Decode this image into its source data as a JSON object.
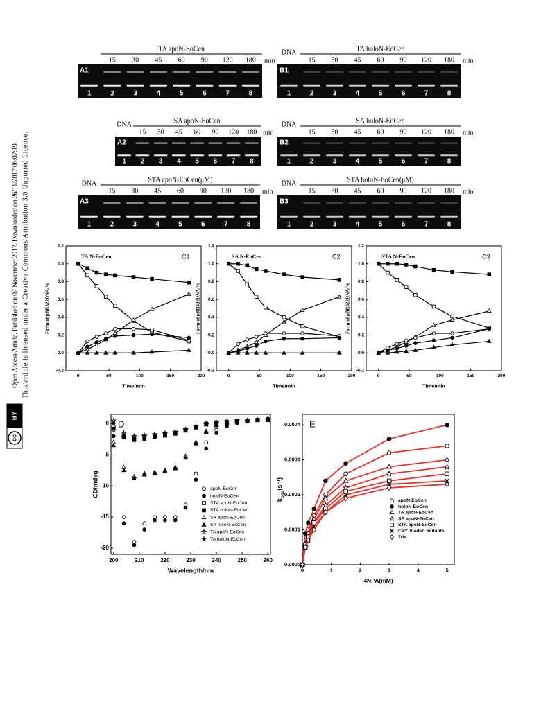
{
  "sidebar": {
    "line1": "Open Access Article. Published on 07 November 2017. Downloaded on 26/11/2017 06:07:19.",
    "line2": "This article is licensed under a Creative Commons Attribution 3.0 Unported Licence.",
    "badge_cc": "cc",
    "badge_by": "BY"
  },
  "gels": [
    {
      "label": "A1",
      "title": "TA apoN-EoCen",
      "times": [
        15,
        30,
        45,
        60,
        90,
        120,
        180
      ],
      "unit": "min",
      "lanes": [
        "1",
        "2",
        "3",
        "4",
        "5",
        "6",
        "7",
        "8"
      ]
    },
    {
      "label": "B1",
      "dna": "DNA",
      "title": "TA holoN-EoCen",
      "times": [
        15,
        30,
        45,
        60,
        90,
        120,
        180
      ],
      "unit": "min",
      "lanes": [
        "1",
        "2",
        "3",
        "4",
        "5",
        "6",
        "7",
        "8"
      ]
    },
    {
      "label": "A2",
      "dna": "DNA",
      "title": "SA apoN-EoCen",
      "times": [
        15,
        30,
        45,
        60,
        90,
        120,
        180
      ],
      "unit": "min",
      "lanes": [
        "1",
        "2",
        "3",
        "4",
        "5",
        "6",
        "7",
        "8"
      ]
    },
    {
      "label": "B2",
      "dna": "DNA",
      "title": "SA holoN-EoCen",
      "times": [
        15,
        30,
        45,
        60,
        90,
        120,
        180
      ],
      "unit": "min",
      "lanes": [
        "1",
        "2",
        "3",
        "4",
        "5",
        "6",
        "7",
        "8"
      ]
    },
    {
      "label": "A3",
      "dna": "DNA",
      "title": "STA apoN-EoCen(μM)",
      "times": [
        15,
        30,
        45,
        60,
        90,
        120,
        180
      ],
      "unit": "min",
      "lanes": [
        "1",
        "2",
        "3",
        "4",
        "5",
        "6",
        "7",
        "8"
      ]
    },
    {
      "label": "B3",
      "dna": "DNA",
      "title": "STA holoN-EoCen(μM)",
      "times": [
        15,
        30,
        45,
        60,
        90,
        120,
        180
      ],
      "unit": "min",
      "lanes": [
        "1",
        "2",
        "3",
        "4",
        "5",
        "6",
        "7",
        "8"
      ]
    }
  ],
  "chart_data": [
    {
      "type": "line",
      "title": "TA N-EoCen",
      "panel": "C1",
      "xlabel": "Time/min",
      "ylabel": "Form of pBR322DNA/%",
      "line_color": "#000000",
      "x": [
        0,
        15,
        30,
        45,
        60,
        90,
        120,
        180
      ],
      "xlim": [
        -20,
        200
      ],
      "xticks": [
        0,
        50,
        100,
        150,
        200
      ],
      "ylim": [
        -0.2,
        1.2
      ],
      "yticks": [
        -0.2,
        {
          "value": 0,
          "label": "0.0"
        },
        0.2,
        0.4,
        0.6,
        0.8,
        {
          "value": 1,
          "label": "1.0"
        },
        1.2
      ],
      "series": [
        {
          "color": "#000000",
          "marker": "square",
          "filled": false,
          "values": [
            1.0,
            0.87,
            0.75,
            0.63,
            0.53,
            0.36,
            0.23,
            0.13
          ]
        },
        {
          "color": "#000000",
          "marker": "square",
          "filled": true,
          "values": [
            1.0,
            0.95,
            0.9,
            0.88,
            0.87,
            0.85,
            0.83,
            0.79
          ]
        },
        {
          "color": "#000000",
          "marker": "triangle",
          "filled": false,
          "values": [
            0,
            0.04,
            0.09,
            0.15,
            0.22,
            0.37,
            0.49,
            0.66
          ]
        },
        {
          "color": "#000000",
          "marker": "circle",
          "filled": false,
          "values": [
            0,
            0.13,
            0.18,
            0.22,
            0.27,
            0.27,
            0.26,
            0.14
          ]
        },
        {
          "color": "#000000",
          "marker": "circle",
          "filled": true,
          "values": [
            0,
            0.07,
            0.12,
            0.16,
            0.19,
            0.2,
            0.21,
            0.17
          ]
        },
        {
          "color": "#000000",
          "marker": "triangle",
          "filled": true,
          "values": [
            0,
            0,
            0,
            0,
            0,
            0,
            0.01,
            0.03
          ]
        }
      ]
    },
    {
      "type": "line",
      "title": "SA N-EoCen",
      "panel": "C2",
      "xlabel": "Time/min",
      "ylabel": "Form of pBR322DNA/%",
      "line_color": "#000000",
      "x": [
        0,
        15,
        30,
        45,
        60,
        90,
        120,
        180
      ],
      "xlim": [
        -20,
        200
      ],
      "xticks": [
        0,
        50,
        100,
        150,
        200
      ],
      "ylim": [
        -0.2,
        1.2
      ],
      "yticks": [
        -0.2,
        {
          "value": 0,
          "label": "0.0"
        },
        0.2,
        0.4,
        0.6,
        0.8,
        {
          "value": 1,
          "label": "1.0"
        },
        1.2
      ],
      "series": [
        {
          "color": "#000000",
          "marker": "square",
          "filled": false,
          "values": [
            1.0,
            0.92,
            0.77,
            0.63,
            0.51,
            0.4,
            0.3,
            0.18
          ]
        },
        {
          "color": "#000000",
          "marker": "square",
          "filled": true,
          "values": [
            1.0,
            1.0,
            0.98,
            0.94,
            0.92,
            0.88,
            0.85,
            0.82
          ]
        },
        {
          "color": "#000000",
          "marker": "triangle",
          "filled": false,
          "values": [
            0,
            0.03,
            0.07,
            0.12,
            0.2,
            0.35,
            0.48,
            0.63
          ]
        },
        {
          "color": "#000000",
          "marker": "circle",
          "filled": false,
          "values": [
            0,
            0.1,
            0.15,
            0.18,
            0.22,
            0.22,
            0.22,
            0.19
          ]
        },
        {
          "color": "#000000",
          "marker": "circle",
          "filled": true,
          "values": [
            0,
            0.02,
            0.05,
            0.08,
            0.13,
            0.16,
            0.16,
            0.17
          ]
        },
        {
          "color": "#000000",
          "marker": "triangle",
          "filled": true,
          "values": [
            0,
            0,
            0,
            0,
            0,
            0,
            0,
            0
          ]
        }
      ]
    },
    {
      "type": "line",
      "title": "STA N-EoCen",
      "panel": "C3",
      "xlabel": "Time/min",
      "ylabel": "Form of pBR322DNA/%",
      "line_color": "#000000",
      "x": [
        0,
        15,
        30,
        45,
        60,
        90,
        120,
        180
      ],
      "xlim": [
        -20,
        200
      ],
      "xticks": [
        0,
        50,
        100,
        150,
        200
      ],
      "ylim": [
        -0.2,
        1.2
      ],
      "yticks": [
        -0.2,
        {
          "value": 0,
          "label": "0.0"
        },
        0.2,
        0.4,
        0.6,
        0.8,
        {
          "value": 1,
          "label": "1.0"
        },
        1.2
      ],
      "series": [
        {
          "color": "#000000",
          "marker": "square",
          "filled": false,
          "values": [
            1.0,
            0.9,
            0.82,
            0.74,
            0.65,
            0.52,
            0.41,
            0.28
          ]
        },
        {
          "color": "#000000",
          "marker": "square",
          "filled": true,
          "values": [
            1.0,
            1.0,
            1.0,
            0.99,
            0.97,
            0.93,
            0.91,
            0.88
          ]
        },
        {
          "color": "#000000",
          "marker": "triangle",
          "filled": false,
          "values": [
            0,
            0.03,
            0.07,
            0.12,
            0.18,
            0.31,
            0.37,
            0.47
          ]
        },
        {
          "color": "#000000",
          "marker": "circle",
          "filled": false,
          "values": [
            0,
            0.06,
            0.1,
            0.14,
            0.17,
            0.22,
            0.22,
            0.27
          ]
        },
        {
          "color": "#000000",
          "marker": "circle",
          "filled": true,
          "values": [
            0,
            0.03,
            0.05,
            0.08,
            0.11,
            0.14,
            0.17,
            0.27
          ]
        },
        {
          "color": "#000000",
          "marker": "triangle",
          "filled": true,
          "values": [
            0,
            0,
            0.01,
            0.02,
            0.03,
            0.06,
            0.09,
            0.13
          ]
        }
      ]
    },
    {
      "type": "scatter",
      "panel": "D",
      "xlabel": "Wavelength/nm",
      "ylabel": "CD/mdeg",
      "legend": "lower right",
      "x": [
        200,
        204,
        208,
        212,
        216,
        220,
        224,
        228,
        232,
        236,
        240,
        244,
        248,
        252,
        256,
        260
      ],
      "xlim": [
        199,
        261
      ],
      "xticks": [
        200,
        210,
        220,
        230,
        240,
        250,
        260
      ],
      "ylim": [
        -21,
        1.5
      ],
      "yticks": [
        -20,
        -15,
        -10,
        -5,
        0
      ],
      "series": [
        {
          "name": "apoN-EoCen",
          "color": "#000000",
          "marker": "circle",
          "filled": false,
          "values": [
            -1,
            -15,
            -19,
            -16,
            -15,
            -15,
            -15,
            -13,
            -8,
            -3,
            -1,
            -0.2,
            0.2,
            0.4,
            0.6,
            0.8
          ]
        },
        {
          "name": "holoN-EoCen",
          "color": "#000000",
          "marker": "circle",
          "filled": true,
          "values": [
            -2,
            -16,
            -19.5,
            -17,
            -15.5,
            -15.5,
            -15.5,
            -13.5,
            -9,
            -4,
            -1.5,
            -0.4,
            0.1,
            0.4,
            0.6,
            0.7
          ]
        },
        {
          "name": "STA apoN-EoCen",
          "color": "#000000",
          "marker": "square",
          "filled": false,
          "values": [
            -0.5,
            -2,
            -2.5,
            -2.3,
            -2,
            -1.8,
            -1.5,
            -1,
            -0.5,
            0,
            0.2,
            0.3,
            0.4,
            0.5,
            0.6,
            0.7
          ]
        },
        {
          "name": "STA holoN-EoCen",
          "color": "#000000",
          "marker": "square",
          "filled": true,
          "values": [
            -0.8,
            -2.2,
            -2.6,
            -2.4,
            -2.1,
            -1.9,
            -1.6,
            -1.1,
            -0.6,
            -0.1,
            0.1,
            0.3,
            0.4,
            0.5,
            0.6,
            0.6
          ]
        },
        {
          "name": "SA apoN-EoCen",
          "color": "#000000",
          "marker": "triangle",
          "filled": false,
          "values": [
            -3,
            -7,
            -8.5,
            -8,
            -7.8,
            -7.5,
            -7,
            -5.2,
            -3,
            -1.2,
            -0.2,
            0.2,
            0.4,
            0.5,
            0.6,
            0.7
          ]
        },
        {
          "name": "SA holoN-EoCen",
          "color": "#000000",
          "marker": "triangle",
          "filled": true,
          "values": [
            -3.5,
            -7.5,
            -8.8,
            -8.2,
            -8,
            -7.7,
            -7.2,
            -5.5,
            -3.2,
            -1.4,
            -0.3,
            0.1,
            0.3,
            0.5,
            0.6,
            0.7
          ]
        },
        {
          "name": "TA apoN-EoCen",
          "color": "#000000",
          "marker": "star",
          "filled": false,
          "values": [
            0.5,
            -1.5,
            -2,
            -1.9,
            -1.7,
            -1.5,
            -1.3,
            -0.9,
            -0.4,
            0,
            0.2,
            0.3,
            0.4,
            0.5,
            0.6,
            0.7
          ]
        },
        {
          "name": "TA holoN-EoCen",
          "color": "#000000",
          "marker": "star",
          "filled": true,
          "values": [
            0,
            -1.8,
            -2.2,
            -2,
            -1.8,
            -1.6,
            -1.4,
            -1,
            -0.5,
            -0.1,
            0.1,
            0.3,
            0.4,
            0.5,
            0.6,
            0.6
          ]
        }
      ]
    },
    {
      "type": "scatter",
      "panel": "E",
      "xlabel": "4NPA(mM)",
      "ylabel": {
        "k": "k",
        "sub": "obs",
        "unit": "(s⁻¹)"
      },
      "legend": "lower right",
      "line_color": "#e8312a",
      "x": [
        0,
        0.1,
        0.2,
        0.4,
        0.8,
        1.5,
        3,
        5
      ],
      "xlim": [
        0,
        5.25
      ],
      "xticks": [
        0,
        1,
        2,
        3,
        4,
        5
      ],
      "ylim": [
        0,
        0.00043
      ],
      "yticks": [
        {
          "value": 0,
          "label": "0.0000"
        },
        {
          "value": 0.0001,
          "label": "0.0001"
        },
        {
          "value": 0.0002,
          "label": "0.0002"
        },
        {
          "value": 0.0003,
          "label": "0.0003"
        },
        {
          "value": 0.0004,
          "label": "0.0004"
        }
      ],
      "series": [
        {
          "name": "apoN-EoCen",
          "color": "#000000",
          "marker": "circle",
          "filled": false,
          "values": [
            0,
            6e-05,
            0.0001,
            0.00014,
            0.0002,
            0.00026,
            0.00032,
            0.00034
          ]
        },
        {
          "name": "holoN-EoCen",
          "color": "#000000",
          "marker": "circle",
          "filled": true,
          "values": [
            0,
            9e-05,
            0.00012,
            0.00016,
            0.00024,
            0.00029,
            0.00036,
            0.0004
          ]
        },
        {
          "name": "TA apoN-EoCen",
          "color": "#000000",
          "marker": "triangle",
          "filled": false,
          "values": [
            0,
            6e-05,
            9e-05,
            0.00013,
            0.00019,
            0.00024,
            0.00028,
            0.0003
          ]
        },
        {
          "name": "SA apoN-EoCen",
          "color": "#000000",
          "marker": "star",
          "filled": false,
          "values": [
            0,
            5e-05,
            8e-05,
            0.00012,
            0.00017,
            0.00022,
            0.00026,
            0.00028
          ]
        },
        {
          "name": "STA apoN-EoCen",
          "color": "#000000",
          "marker": "square",
          "filled": false,
          "values": [
            0,
            5e-05,
            8e-05,
            0.00012,
            0.00016,
            0.00021,
            0.00024,
            0.00026
          ]
        },
        {
          "name": "Ca²⁺ loaded mutants",
          "color": "#000000",
          "marker": "cross",
          "filled": false,
          "values": [
            0,
            5e-05,
            7e-05,
            0.00011,
            0.00015,
            0.0002,
            0.00023,
            0.00024
          ]
        },
        {
          "name": "Tris",
          "color": "#000000",
          "marker": "diamond",
          "filled": false,
          "values": [
            0,
            5e-05,
            7e-05,
            0.0001,
            0.00015,
            0.00019,
            0.00022,
            0.00023
          ]
        }
      ]
    }
  ]
}
